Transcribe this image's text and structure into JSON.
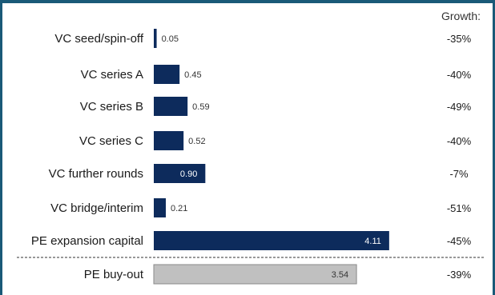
{
  "chart_data": {
    "type": "bar",
    "orientation": "horizontal",
    "growth_header": "Growth:",
    "categories": [
      "VC seed/spin-off",
      "VC series A",
      "VC series B",
      "VC series C",
      "VC further rounds",
      "VC bridge/interim",
      "PE expansion capital",
      "PE buy-out"
    ],
    "values": [
      0.05,
      0.45,
      0.59,
      0.52,
      0.9,
      0.21,
      4.11,
      3.54
    ],
    "value_labels": [
      "0.05",
      "0.45",
      "0.59",
      "0.52",
      "0.90",
      "0.21",
      "4.11",
      "3.54"
    ],
    "growth": [
      "-35%",
      "-40%",
      "-49%",
      "-40%",
      "-7%",
      "-51%",
      "-45%",
      "-39%"
    ],
    "separator_before_index": 7,
    "colors": {
      "primary": "#0d2b5c",
      "secondary": "#c0c0c0",
      "frame": "#1a5a78"
    }
  }
}
